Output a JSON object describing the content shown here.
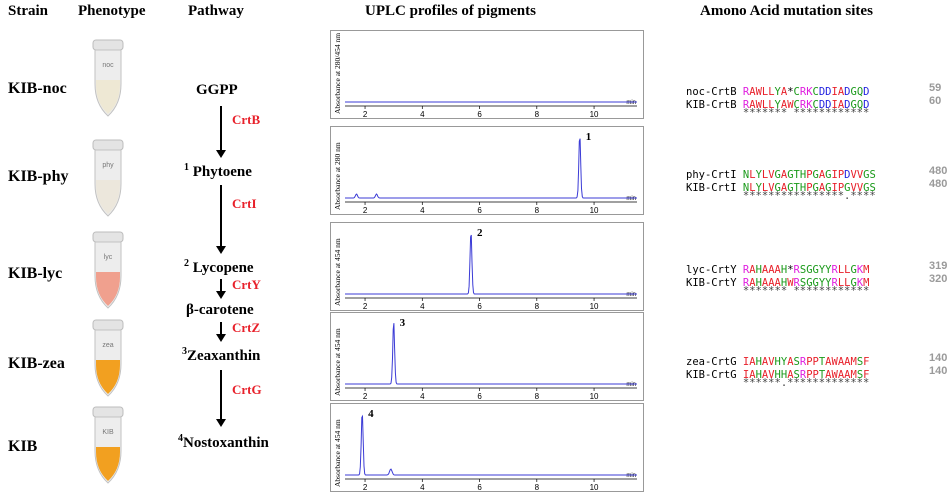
{
  "headers": {
    "strain": "Strain",
    "phenotype": "Phenotype",
    "pathway": "Pathway",
    "uplc": "UPLC profiles of pigments",
    "mutation": "Amono Acid mutation sites"
  },
  "strains": [
    "KIB-noc",
    "KIB-phy",
    "KIB-lyc",
    "KIB-zea",
    "KIB"
  ],
  "tube_colors": [
    "#eee8d4",
    "#ece7dc",
    "#f0a08e",
    "#f2a020",
    "#f2a020"
  ],
  "tube_labels": [
    "noc",
    "phy",
    "lyc",
    "zea",
    "KIB"
  ],
  "pathway": {
    "ggpp": "GGPP",
    "phytoene_num": "1",
    "phytoene": "Phytoene",
    "lycopene_num": "2",
    "lycopene": "Lycopene",
    "bcarotene": "β-carotene",
    "zeaxanthin_num": "3",
    "zeaxanthin": "Zeaxanthin",
    "nostoxanthin_num": "4",
    "nostoxanthin": "Nostoxanthin",
    "enzymes": [
      "CrtB",
      "CrtI",
      "CrtY",
      "CrtZ",
      "CrtG"
    ]
  },
  "uplc_panels": [
    {
      "ylabel": "Absorbance at 280/454 nm",
      "peak_label": "",
      "peak_rt": null
    },
    {
      "ylabel": "Absorbance at 280 nm",
      "peak_label": "1",
      "peak_rt": 9.5
    },
    {
      "ylabel": "Absorbance at 454 nm",
      "peak_label": "2",
      "peak_rt": 5.7
    },
    {
      "ylabel": "Absorbance at 454 nm",
      "peak_label": "3",
      "peak_rt": 3.0
    },
    {
      "ylabel": "Absorbance at 454 nm",
      "peak_label": "4",
      "peak_rt": 1.9
    }
  ],
  "uplc_axis": {
    "ticks": [
      "2",
      "4",
      "6",
      "8",
      "10"
    ],
    "unit": "min",
    "xlim": [
      1.3,
      11.5
    ]
  },
  "alignments": [
    {
      "rows": [
        {
          "name": "noc-CrtB",
          "seq": "RAWLLYA*CRKCDDIADGQD",
          "num": "59"
        },
        {
          "name": "KIB-CrtB",
          "seq": "RAWLLYAWCRKCDDIADGQD",
          "num": "60"
        }
      ],
      "consensus": "******* ************"
    },
    {
      "rows": [
        {
          "name": "phy-CrtI",
          "seq": "NLYLVGAGTHPGAGIPDVVGS",
          "num": "480"
        },
        {
          "name": "KIB-CrtI",
          "seq": "NLYLVGAGTHPGAGIPGVVGS",
          "num": "480"
        }
      ],
      "consensus": "****************.****"
    },
    {
      "rows": [
        {
          "name": "lyc-CrtY",
          "seq": "RAHAAAH*RSGGYYRLLGKM",
          "num": "319"
        },
        {
          "name": "KIB-CrtY",
          "seq": "RAHAAAHWRSGGYYRLLGKM",
          "num": "320"
        }
      ],
      "consensus": "******* ************"
    },
    {
      "rows": [
        {
          "name": "zea-CrtG",
          "seq": "IAHAVHYASRPPTAWAAMSF",
          "num": "140"
        },
        {
          "name": "KIB-CrtG",
          "seq": "IAHAVHHASRPPTAWAAMSF",
          "num": "140"
        }
      ],
      "consensus": "******.*************"
    }
  ],
  "colors": {
    "enzyme": "#e8202a",
    "trace": "#3b3bd6",
    "number": "#9a9a9a"
  }
}
